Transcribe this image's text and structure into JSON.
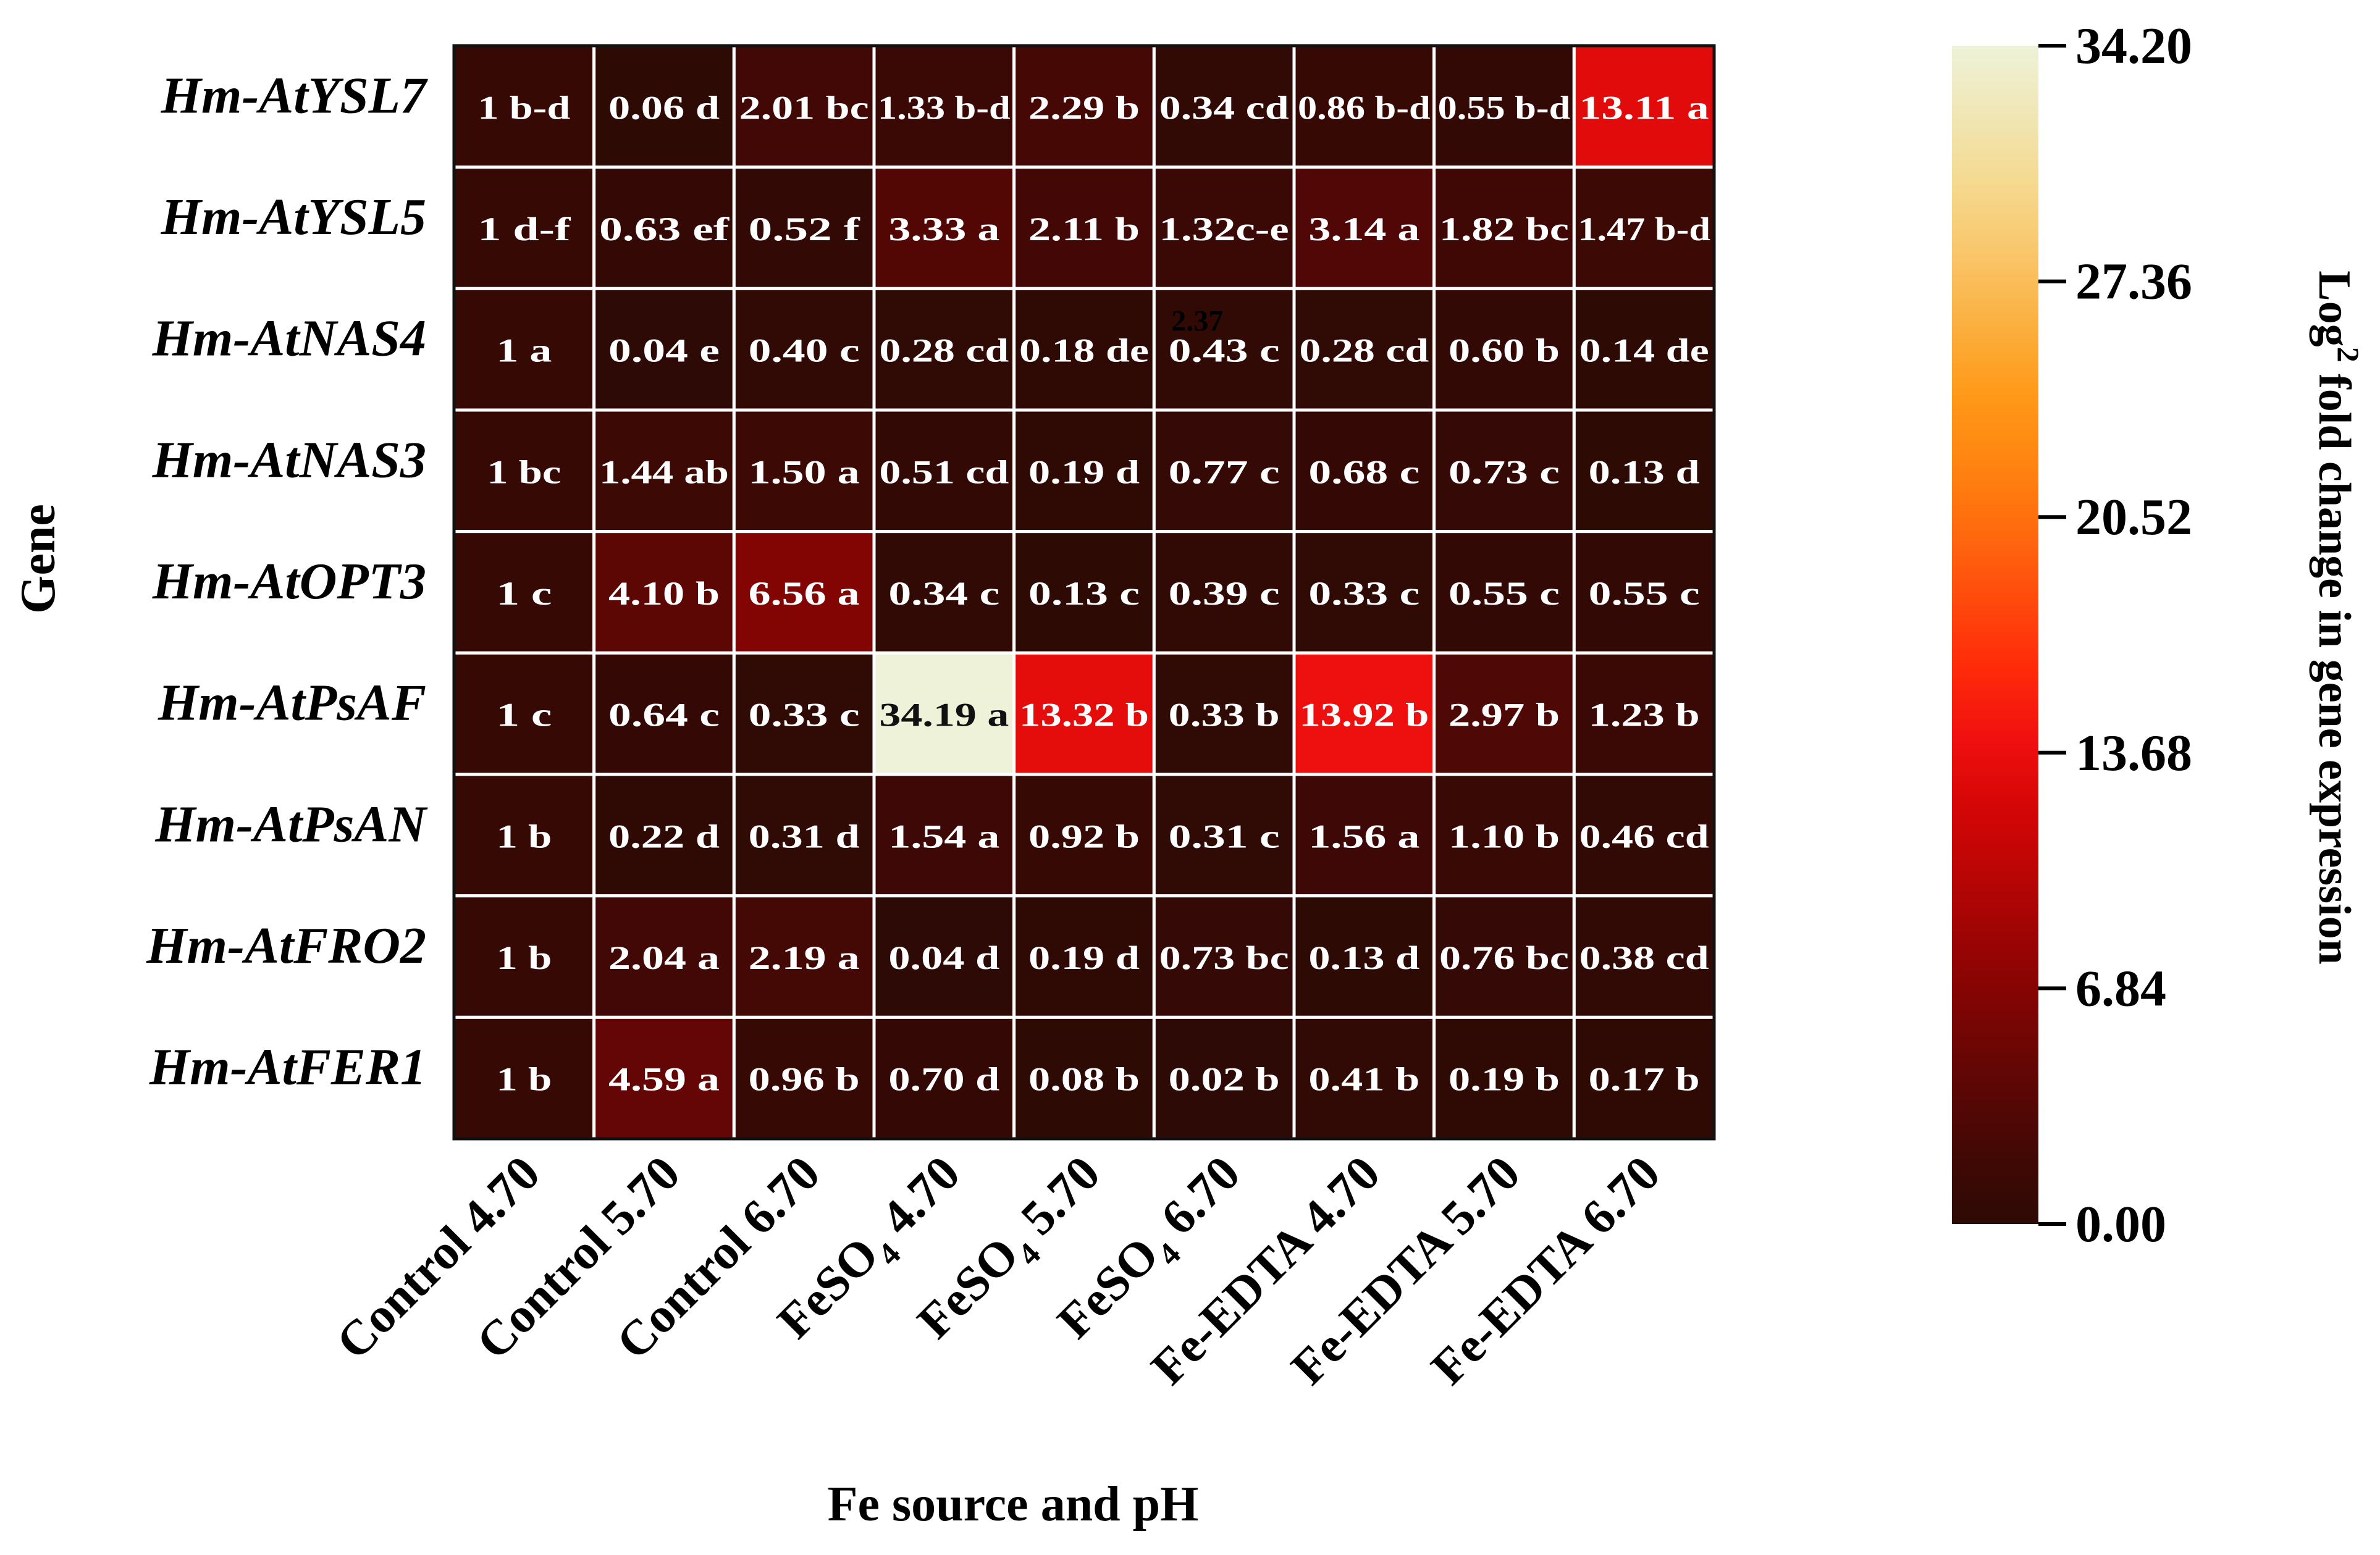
{
  "chart_data": {
    "type": "heatmap",
    "xlabel": "Fe source and pH",
    "ylabel": "Gene",
    "colorbar": {
      "label_prefix": "Log",
      "label_superscript": "2",
      "label_suffix": " fold change in gene expression",
      "min": 0.0,
      "max": 34.2,
      "ticks": [
        "34.20",
        "27.36",
        "20.52",
        "13.68",
        "6.84",
        "0.00"
      ],
      "tick_values": [
        34.2,
        27.36,
        20.52,
        13.68,
        6.84,
        0.0
      ]
    },
    "columns": [
      {
        "pre": "Control 4.70",
        "sub": "",
        "post": ""
      },
      {
        "pre": "Control 5.70",
        "sub": "",
        "post": ""
      },
      {
        "pre": "Control 6.70",
        "sub": "",
        "post": ""
      },
      {
        "pre": "FeSO",
        "sub": "4",
        "post": " 4.70"
      },
      {
        "pre": "FeSO",
        "sub": "4",
        "post": " 5.70"
      },
      {
        "pre": "FeSO",
        "sub": "4",
        "post": " 6.70"
      },
      {
        "pre": "Fe-EDTA 4.70",
        "sub": "",
        "post": ""
      },
      {
        "pre": "Fe-EDTA 5.70",
        "sub": "",
        "post": ""
      },
      {
        "pre": "Fe-EDTA 6.70",
        "sub": "",
        "post": ""
      }
    ],
    "rows": [
      "Hm-AtYSL7",
      "Hm-AtYSL5",
      "Hm-AtNAS4",
      "Hm-AtNAS3",
      "Hm-AtOPT3",
      "Hm-AtPsAF",
      "Hm-AtPsAN",
      "Hm-AtFRO2",
      "Hm-AtFER1"
    ],
    "values": [
      [
        1,
        0.06,
        2.01,
        1.33,
        2.29,
        0.34,
        0.86,
        0.55,
        13.11
      ],
      [
        1,
        0.63,
        0.52,
        3.33,
        2.11,
        1.32,
        3.14,
        1.82,
        1.47
      ],
      [
        1,
        0.04,
        0.4,
        0.28,
        0.18,
        0.43,
        0.28,
        0.6,
        0.14
      ],
      [
        1,
        1.44,
        1.5,
        0.51,
        0.19,
        0.77,
        0.68,
        0.73,
        0.13
      ],
      [
        1,
        4.1,
        6.56,
        0.34,
        0.13,
        0.39,
        0.33,
        0.55,
        0.55
      ],
      [
        1,
        0.64,
        0.33,
        34.19,
        13.32,
        0.33,
        13.92,
        2.97,
        1.23
      ],
      [
        1,
        0.22,
        0.31,
        1.54,
        0.92,
        0.31,
        1.56,
        1.1,
        0.46
      ],
      [
        1,
        2.04,
        2.19,
        0.04,
        0.19,
        0.73,
        0.13,
        0.76,
        0.38
      ],
      [
        1,
        4.59,
        0.96,
        0.7,
        0.08,
        0.02,
        0.41,
        0.19,
        0.17
      ]
    ],
    "cell_labels": [
      [
        "1 b-d",
        "0.06 d",
        "2.01 bc",
        "1.33 b-d",
        "2.29 b",
        "0.34 cd",
        "0.86 b-d",
        "0.55 b-d",
        "13.11 a"
      ],
      [
        "1 d-f",
        "0.63 ef",
        "0.52 f",
        "3.33 a",
        "2.11 b",
        "1.32c-e",
        "3.14 a",
        "1.82 bc",
        "1.47 b-d"
      ],
      [
        "1 a",
        "0.04 e",
        "0.40 c",
        "0.28 cd",
        "0.18 de",
        "0.43 c",
        "0.28 cd",
        "0.60 b",
        "0.14 de"
      ],
      [
        "1 bc",
        "1.44 ab",
        "1.50 a",
        "0.51 cd",
        "0.19 d",
        "0.77 c",
        "0.68 c",
        "0.73 c",
        "0.13 d"
      ],
      [
        "1 c",
        "4.10 b",
        "6.56 a",
        "0.34 c",
        "0.13 c",
        "0.39 c",
        "0.33 c",
        "0.55 c",
        "0.55 c"
      ],
      [
        "1 c",
        "0.64 c",
        "0.33 c",
        "34.19 a",
        "13.32 b",
        "0.33 b",
        "13.92 b",
        "2.97 b",
        "1.23 b"
      ],
      [
        "1 b",
        "0.22 d",
        "0.31 d",
        "1.54 a",
        "0.92 b",
        "0.31 c",
        "1.56 a",
        "1.10 b",
        "0.46 cd"
      ],
      [
        "1 b",
        "2.04 a",
        "2.19 a",
        "0.04 d",
        "0.19 d",
        "0.73 bc",
        "0.13 d",
        "0.76 bc",
        "0.38 cd"
      ],
      [
        "1 b",
        "4.59 a",
        "0.96 b",
        "0.70 d",
        "0.08 b",
        "0.02 b",
        "0.41 b",
        "0.19 b",
        "0.17 b"
      ]
    ],
    "stray_annotation": "2.37",
    "colormap": [
      "#2d0a05",
      "#420805",
      "#5c0705",
      "#7a0504",
      "#990404",
      "#b80505",
      "#d40606",
      "#f01010",
      "#ff2a0a",
      "#ff4a0d",
      "#ff6a0e",
      "#ff8510",
      "#ff9a1a",
      "#fbb040",
      "#f9c66a",
      "#f5d98f",
      "#f0e6b5",
      "#eef2d8"
    ]
  }
}
